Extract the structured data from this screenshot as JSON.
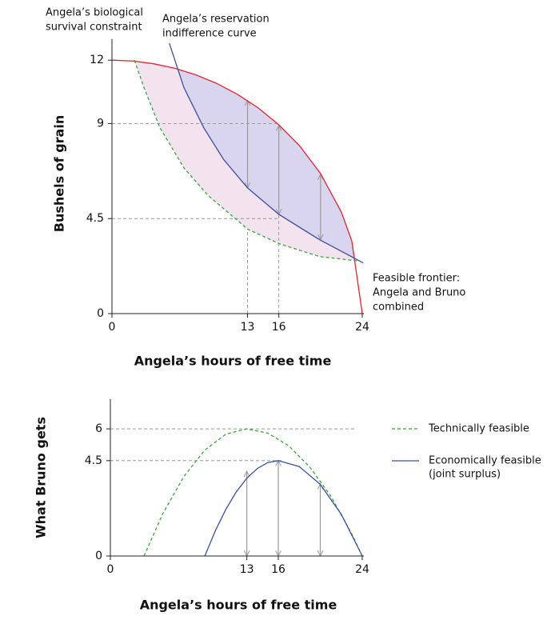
{
  "chart_data": [
    {
      "type": "line",
      "xlabel": "Angela’s hours of free time",
      "ylabel": "Bushels of grain",
      "xlim": [
        0,
        24
      ],
      "ylim": [
        0,
        13
      ],
      "xticks": [
        0,
        13,
        16,
        24
      ],
      "yticks": [
        0,
        4.5,
        9,
        12
      ],
      "series": [
        {
          "label": [
            "Feasible frontier:",
            "Angela and Bruno",
            "combined"
          ],
          "color": "#e3242b",
          "dashed": false,
          "x": [
            0,
            2,
            4,
            6,
            8,
            10,
            12,
            14,
            16,
            18,
            20,
            22,
            23,
            24
          ],
          "values": [
            12,
            11.96,
            11.83,
            11.62,
            11.31,
            10.91,
            10.39,
            9.75,
            8.94,
            7.94,
            6.63,
            4.8,
            3.43,
            0
          ]
        },
        {
          "label": [
            "Angela’s biological",
            "survival constraint"
          ],
          "color": "#3aa63a",
          "dashed": true,
          "fill": "#f2e3ef",
          "x": [
            2.15,
            3.07,
            4.6,
            6.9,
            9.2,
            12.3,
            13,
            16.1,
            19.9,
            23.5
          ],
          "values": [
            12,
            10.7,
            8.8,
            6.9,
            5.6,
            4.3,
            4,
            3.3,
            2.7,
            2.5
          ]
        },
        {
          "label": [
            "Angela’s reservation",
            "indifference curve"
          ],
          "color": "#3a4fa0",
          "dashed": false,
          "fill": "#d9d5ee",
          "x": [
            5.5,
            6.9,
            8.8,
            10.7,
            13,
            16,
            19.9,
            24.1
          ],
          "values": [
            12.8,
            10.7,
            8.8,
            7.3,
            5.95,
            4.7,
            3.5,
            2.4
          ]
        }
      ],
      "hlines": [
        {
          "y": 9,
          "x": 16
        },
        {
          "y": 4.5,
          "x": 16
        }
      ],
      "vlines": [
        {
          "x": 13,
          "y": 4
        },
        {
          "x": 16,
          "y": 4.7
        }
      ],
      "arrows": [
        {
          "x": 13,
          "from": 5.95,
          "to": 10.1
        },
        {
          "x": 16,
          "from": 4.7,
          "to": 8.9
        },
        {
          "x": 20,
          "from": 3.5,
          "to": 6.6
        }
      ]
    },
    {
      "type": "line",
      "xlabel": "Angela’s hours of free time",
      "ylabel": "What Bruno gets",
      "xlim": [
        0,
        24
      ],
      "ylim": [
        0,
        7.4
      ],
      "xticks": [
        0,
        13,
        16,
        24
      ],
      "yticks": [
        0,
        4.5,
        6
      ],
      "series": [
        {
          "name": [
            "Technically feasible"
          ],
          "color": "#3aa63a",
          "dashed": true,
          "x": [
            3.2,
            5,
            7,
            9,
            11,
            13,
            15,
            17,
            19,
            21,
            23,
            24
          ],
          "values": [
            0,
            2,
            3.75,
            5,
            5.75,
            6,
            5.8,
            5.2,
            4.2,
            2.83,
            1.04,
            0
          ]
        },
        {
          "name": [
            "Economically feasible",
            "(joint surplus)"
          ],
          "color": "#3a4fa0",
          "dashed": false,
          "x": [
            9,
            10,
            11,
            12,
            13,
            14,
            15,
            16,
            18,
            20,
            22,
            24
          ],
          "values": [
            0,
            1.19,
            2.2,
            3.03,
            3.67,
            4.13,
            4.41,
            4.5,
            4.22,
            3.38,
            1.97,
            0
          ]
        }
      ],
      "hlines": [
        {
          "y": 6,
          "x": 23.4
        },
        {
          "y": 4.5,
          "x": 16.4
        }
      ],
      "arrows": [
        {
          "x": 13,
          "from": 0,
          "to": 4
        },
        {
          "x": 16,
          "from": 0,
          "to": 4.5
        },
        {
          "x": 20,
          "from": 0,
          "to": 3.4
        }
      ]
    }
  ]
}
